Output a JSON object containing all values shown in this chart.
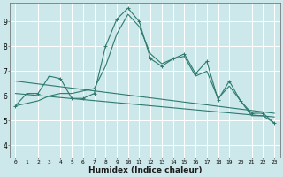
{
  "xlabel": "Humidex (Indice chaleur)",
  "bg_color": "#cce8ea",
  "grid_color": "#ffffff",
  "line_color": "#2d7a6e",
  "x_ticks": [
    0,
    1,
    2,
    3,
    4,
    5,
    6,
    7,
    8,
    9,
    10,
    11,
    12,
    13,
    14,
    15,
    16,
    17,
    18,
    19,
    20,
    21,
    22,
    23
  ],
  "ylim": [
    3.5,
    9.75
  ],
  "xlim": [
    -0.5,
    23.5
  ],
  "series1_x": [
    0,
    1,
    2,
    3,
    4,
    5,
    6,
    7,
    8,
    9,
    10,
    11,
    12,
    13,
    14,
    15,
    16,
    17,
    18,
    19,
    20,
    21,
    22,
    23
  ],
  "series1_y": [
    5.6,
    6.1,
    6.1,
    6.8,
    6.7,
    5.9,
    5.9,
    6.1,
    8.0,
    9.1,
    9.55,
    9.0,
    7.5,
    7.2,
    7.5,
    7.7,
    6.9,
    7.4,
    5.85,
    6.6,
    5.8,
    5.3,
    5.3,
    4.9
  ],
  "series2_x": [
    0,
    1,
    2,
    3,
    4,
    5,
    6,
    7,
    8,
    9,
    10,
    11,
    12,
    13,
    14,
    15,
    16,
    17,
    18,
    19,
    20,
    21,
    22,
    23
  ],
  "series2_y": [
    5.6,
    5.7,
    5.8,
    6.0,
    6.1,
    6.1,
    6.2,
    6.3,
    7.2,
    8.5,
    9.3,
    8.8,
    7.7,
    7.3,
    7.5,
    7.6,
    6.8,
    7.0,
    5.9,
    6.4,
    5.8,
    5.2,
    5.2,
    4.9
  ],
  "series3_x": [
    0,
    23
  ],
  "series3_y": [
    6.6,
    5.3
  ],
  "series4_x": [
    0,
    23
  ],
  "series4_y": [
    6.1,
    5.15
  ],
  "yticks": [
    4,
    5,
    6,
    7,
    8,
    9
  ]
}
